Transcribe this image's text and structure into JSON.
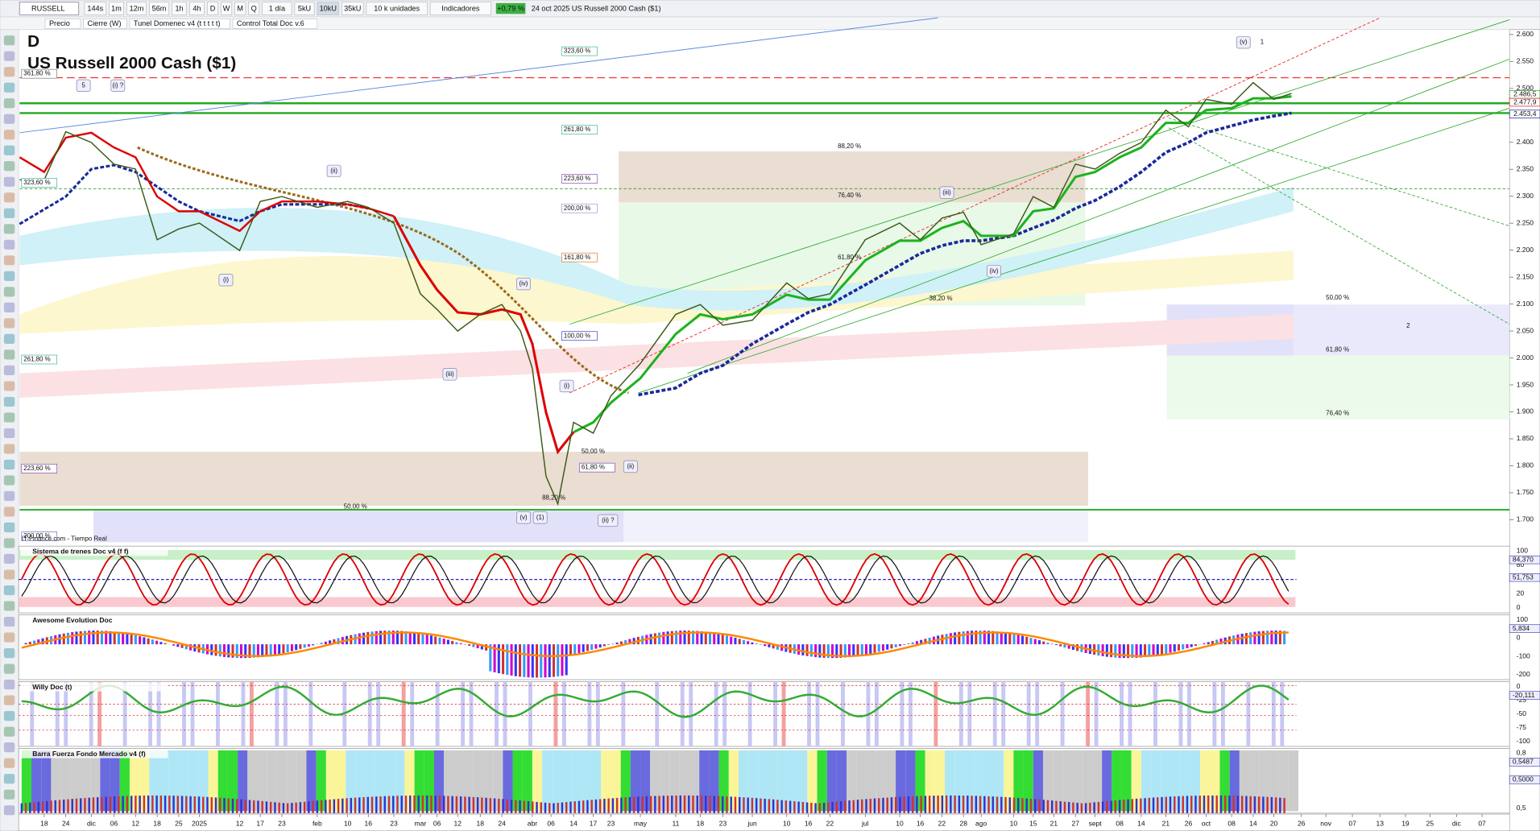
{
  "toolbar": {
    "symbol": "RUSSELL",
    "buttons": [
      "144s",
      "1m",
      "12m",
      "56m",
      "1h",
      "4h",
      "D",
      "W",
      "M",
      "Q",
      "1 día",
      "5kU",
      "10kU",
      "35kU",
      "10 k unidades",
      "Indicadores"
    ],
    "change": "+0,79 %",
    "caption": "24 oct 2025  US Russell 2000 Cash ($1)"
  },
  "toolbar2": [
    "Precio",
    "Cierre (W)",
    "Tunel Domenec v4 (t t t t t)",
    "Control Total Doc v.6"
  ],
  "chart": {
    "period_letter": "D",
    "title": "US Russell 2000 Cash ($1)",
    "source": "IT-Finance.com - Tiempo Real",
    "price_axis": [
      "2.600",
      "2.550",
      "2.500",
      "2.450",
      "2.400",
      "2.350",
      "2.300",
      "2.250",
      "2.200",
      "2.150",
      "2.100",
      "2.050",
      "2.000",
      "1.950",
      "1.900",
      "1.850",
      "1.800",
      "1.750",
      "1.700"
    ],
    "price_tags": [
      "2.486,5",
      "2.477,9",
      "2.453,4"
    ],
    "annotations": [
      "361,80 %",
      "323,60 %",
      "261,80 %",
      "223,60 %",
      "200,00 %",
      "323,60 %",
      "261,80 %",
      "88,20 %",
      "223,60 %",
      "200,00 %",
      "76,40 %",
      "161,80 %",
      "61,80 %",
      "38,20 %",
      "100,00 %",
      "50,00 %",
      "61,80 %",
      "76,40 %",
      "2",
      "50,00 %",
      "61,80 %",
      "88,20 %",
      "50,00 %"
    ],
    "waves": [
      "5",
      "(i) ?",
      "(ii)",
      "(i)",
      "(iv)",
      "(iii)",
      "(i)",
      "(ii)",
      "(v)",
      "(1)",
      "(ii) ?",
      "(iii)",
      "(iv)",
      "(v)",
      "1"
    ]
  },
  "panels": [
    {
      "title": "Sistema de trenes Doc v4 (f f)",
      "axis": [
        "100",
        "80",
        "50",
        "20",
        "0"
      ],
      "tags": [
        "84,370",
        "51,753"
      ]
    },
    {
      "title": "Awesome Evolution Doc",
      "axis": [
        "100",
        "0",
        "-100",
        "-200"
      ],
      "tags": [
        "5,834"
      ]
    },
    {
      "title": "Willy Doc (t)",
      "axis": [
        "0",
        "-25",
        "-50",
        "-75",
        "-100"
      ],
      "tags": [
        "-20,111"
      ]
    },
    {
      "title": "Barra Fuerza Fondo Mercado v4 (f)",
      "axis": [
        "0,8",
        "0,5"
      ],
      "tags": [
        "0,5487",
        "0,5000"
      ]
    }
  ],
  "dates": [
    "18",
    "24",
    "dic",
    "06",
    "12",
    "18",
    "25",
    "2025",
    "12",
    "17",
    "23",
    "feb",
    "10",
    "16",
    "23",
    "mar",
    "06",
    "12",
    "18",
    "24",
    "abr",
    "06",
    "14",
    "17",
    "23",
    "may",
    "11",
    "18",
    "23",
    "jun",
    "10",
    "16",
    "22",
    "jul",
    "10",
    "16",
    "22",
    "28",
    "ago",
    "10",
    "15",
    "21",
    "27",
    "sept",
    "08",
    "14",
    "21",
    "26",
    "oct",
    "08",
    "14",
    "20",
    "26",
    "nov",
    "07",
    "13",
    "19",
    "25",
    "dic",
    "07"
  ]
}
